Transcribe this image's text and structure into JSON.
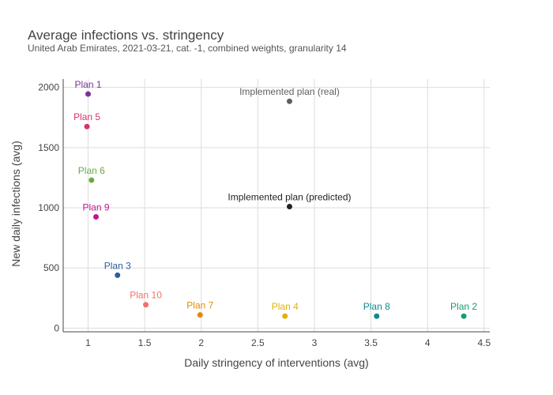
{
  "chart_data": {
    "type": "scatter",
    "title": "Average infections vs. stringency",
    "subtitle": "United Arab Emirates, 2021-03-21, cat. -1, combined weights, granularity 14",
    "xlabel": "Daily stringency of interventions (avg)",
    "ylabel": "New daily infections (avg)",
    "xlim": [
      0.78,
      4.55
    ],
    "ylim": [
      -30,
      2070
    ],
    "xticks": [
      1,
      1.5,
      2,
      2.5,
      3,
      3.5,
      4,
      4.5
    ],
    "xtick_labels": [
      "1",
      "1.5",
      "2",
      "2.5",
      "3",
      "3.5",
      "4",
      "4.5"
    ],
    "yticks": [
      0,
      500,
      1000,
      1500,
      2000
    ],
    "ytick_labels": [
      "0",
      "500",
      "1000",
      "1500",
      "2000"
    ],
    "grid": true,
    "legend": "none",
    "points": [
      {
        "label": "Plan 1",
        "x": 1.0,
        "y": 1945,
        "color": "#7b3294"
      },
      {
        "label": "Plan 5",
        "x": 0.99,
        "y": 1675,
        "color": "#d6336c"
      },
      {
        "label": "Plan 6",
        "x": 1.03,
        "y": 1230,
        "color": "#6aaa45"
      },
      {
        "label": "Plan 9",
        "x": 1.07,
        "y": 925,
        "color": "#c0168e"
      },
      {
        "label": "Plan 3",
        "x": 1.26,
        "y": 440,
        "color": "#2c5f9e"
      },
      {
        "label": "Plan 10",
        "x": 1.51,
        "y": 195,
        "color": "#f0726a"
      },
      {
        "label": "Plan 7",
        "x": 1.99,
        "y": 110,
        "color": "#e08a0b"
      },
      {
        "label": "Plan 4",
        "x": 2.74,
        "y": 100,
        "color": "#e3b00d"
      },
      {
        "label": "Plan 8",
        "x": 3.55,
        "y": 100,
        "color": "#11878f"
      },
      {
        "label": "Plan 2",
        "x": 4.32,
        "y": 100,
        "color": "#179c74"
      },
      {
        "label": "Implemented plan (real)",
        "x": 2.78,
        "y": 1885,
        "color": "#5f5f5f"
      },
      {
        "label": "Implemented plan (predicted)",
        "x": 2.78,
        "y": 1010,
        "color": "#222222"
      }
    ]
  }
}
